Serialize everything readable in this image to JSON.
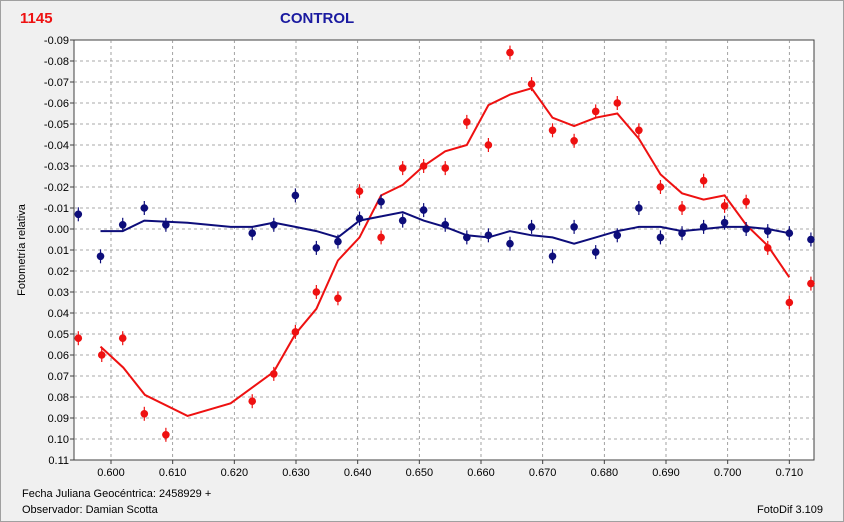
{
  "header": {
    "id": "1145",
    "title": "CONTROL"
  },
  "footer": {
    "jd_label": "Fecha Juliana Geocéntrica: 2458929 +",
    "observer_label": "Observador: Damian Scotta",
    "software": "FotoDif 3.109"
  },
  "colors": {
    "target": "#ee1111",
    "control": "#0d0d7a",
    "grid": "#8c8c8c"
  },
  "chart_data": {
    "type": "scatter",
    "ylabel": "Fotometría relativa",
    "xlim": [
      0.594,
      0.714
    ],
    "ylim": [
      0.11,
      -0.09
    ],
    "y_inverted": true,
    "grid": true,
    "x_ticks": [
      "0.600",
      "0.610",
      "0.620",
      "0.630",
      "0.640",
      "0.650",
      "0.660",
      "0.670",
      "0.680",
      "0.690",
      "0.700",
      "0.710"
    ],
    "y_ticks": [
      "-0.09",
      "-0.08",
      "-0.07",
      "-0.06",
      "-0.05",
      "-0.04",
      "-0.03",
      "-0.02",
      "-0.01",
      "0.00",
      "0.01",
      "0.02",
      "0.03",
      "0.04",
      "0.05",
      "0.06",
      "0.07",
      "0.08",
      "0.09",
      "0.10",
      "0.11"
    ],
    "y_tick_labels": [
      "-0.09",
      "-0.08",
      "-0.07",
      "-0.06",
      "-0.05",
      "-0.04",
      "-0.03",
      "-0.02",
      "-0.01",
      "0.00",
      "0.01",
      "0.02",
      "0.03",
      "0.04",
      "0.05",
      "0.06",
      "0.07",
      "0.08",
      "0.09",
      "0.10",
      "0.11"
    ],
    "series": [
      {
        "color": "#ee1111",
        "points": [
          [
            0.5947,
            0.052
          ],
          [
            0.5985,
            0.06
          ],
          [
            0.6019,
            0.052
          ],
          [
            0.6054,
            0.088
          ],
          [
            0.6089,
            0.098
          ],
          [
            0.6229,
            0.082
          ],
          [
            0.6264,
            0.069
          ],
          [
            0.6299,
            0.049
          ],
          [
            0.6333,
            0.03
          ],
          [
            0.6368,
            0.033
          ],
          [
            0.6403,
            -0.018
          ],
          [
            0.6438,
            0.004
          ],
          [
            0.6473,
            -0.029
          ],
          [
            0.6507,
            -0.03
          ],
          [
            0.6542,
            -0.029
          ],
          [
            0.6577,
            -0.051
          ],
          [
            0.6612,
            -0.04
          ],
          [
            0.6647,
            -0.084
          ],
          [
            0.6682,
            -0.069
          ],
          [
            0.6716,
            -0.047
          ],
          [
            0.6751,
            -0.042
          ],
          [
            0.6786,
            -0.056
          ],
          [
            0.6821,
            -0.06
          ],
          [
            0.6856,
            -0.047
          ],
          [
            0.6891,
            -0.02
          ],
          [
            0.6926,
            -0.01
          ],
          [
            0.6961,
            -0.023
          ],
          [
            0.6995,
            -0.011
          ],
          [
            0.703,
            -0.013
          ],
          [
            0.7065,
            0.009
          ],
          [
            0.71,
            0.035
          ],
          [
            0.7135,
            0.026
          ]
        ],
        "line": [
          [
            0.5983,
            0.056
          ],
          [
            0.602,
            0.066
          ],
          [
            0.6055,
            0.079
          ],
          [
            0.6124,
            0.089
          ],
          [
            0.6194,
            0.083
          ],
          [
            0.6264,
            0.068
          ],
          [
            0.6299,
            0.05
          ],
          [
            0.6333,
            0.038
          ],
          [
            0.6368,
            0.015
          ],
          [
            0.6403,
            0.004
          ],
          [
            0.6438,
            -0.016
          ],
          [
            0.6473,
            -0.021
          ],
          [
            0.6507,
            -0.03
          ],
          [
            0.6542,
            -0.037
          ],
          [
            0.6577,
            -0.04
          ],
          [
            0.6612,
            -0.059
          ],
          [
            0.6647,
            -0.064
          ],
          [
            0.6682,
            -0.067
          ],
          [
            0.6716,
            -0.053
          ],
          [
            0.6751,
            -0.049
          ],
          [
            0.6786,
            -0.053
          ],
          [
            0.6821,
            -0.055
          ],
          [
            0.6856,
            -0.043
          ],
          [
            0.6891,
            -0.026
          ],
          [
            0.6926,
            -0.017
          ],
          [
            0.6961,
            -0.014
          ],
          [
            0.6995,
            -0.016
          ],
          [
            0.703,
            -0.002
          ],
          [
            0.7065,
            0.008
          ],
          [
            0.71,
            0.023
          ]
        ]
      },
      {
        "color": "#0d0d7a",
        "points": [
          [
            0.5947,
            -0.007
          ],
          [
            0.5983,
            0.013
          ],
          [
            0.6019,
            -0.002
          ],
          [
            0.6054,
            -0.01
          ],
          [
            0.6089,
            -0.002
          ],
          [
            0.6229,
            0.002
          ],
          [
            0.6264,
            -0.002
          ],
          [
            0.6299,
            -0.016
          ],
          [
            0.6333,
            0.009
          ],
          [
            0.6368,
            0.006
          ],
          [
            0.6403,
            -0.005
          ],
          [
            0.6438,
            -0.013
          ],
          [
            0.6473,
            -0.004
          ],
          [
            0.6507,
            -0.009
          ],
          [
            0.6542,
            -0.002
          ],
          [
            0.6577,
            0.004
          ],
          [
            0.6612,
            0.003
          ],
          [
            0.6647,
            0.007
          ],
          [
            0.6682,
            -0.001
          ],
          [
            0.6716,
            0.013
          ],
          [
            0.6751,
            -0.001
          ],
          [
            0.6786,
            0.011
          ],
          [
            0.6821,
            0.003
          ],
          [
            0.6856,
            -0.01
          ],
          [
            0.6891,
            0.004
          ],
          [
            0.6926,
            0.002
          ],
          [
            0.6961,
            -0.001
          ],
          [
            0.6995,
            -0.003
          ],
          [
            0.703,
            0.0
          ],
          [
            0.7065,
            0.001
          ],
          [
            0.71,
            0.002
          ],
          [
            0.7135,
            0.005
          ]
        ],
        "line": [
          [
            0.5983,
            0.001
          ],
          [
            0.6019,
            0.001
          ],
          [
            0.6054,
            -0.004
          ],
          [
            0.6124,
            -0.003
          ],
          [
            0.6194,
            -0.001
          ],
          [
            0.6229,
            -0.001
          ],
          [
            0.6264,
            -0.003
          ],
          [
            0.6299,
            -0.001
          ],
          [
            0.6333,
            0.001
          ],
          [
            0.6368,
            0.004
          ],
          [
            0.6403,
            -0.004
          ],
          [
            0.6438,
            -0.006
          ],
          [
            0.6473,
            -0.008
          ],
          [
            0.6507,
            -0.004
          ],
          [
            0.6542,
            -0.001
          ],
          [
            0.6577,
            0.003
          ],
          [
            0.6612,
            0.004
          ],
          [
            0.6647,
            0.001
          ],
          [
            0.6682,
            0.003
          ],
          [
            0.6716,
            0.004
          ],
          [
            0.6751,
            0.007
          ],
          [
            0.6786,
            0.004
          ],
          [
            0.6821,
            0.001
          ],
          [
            0.6856,
            -0.001
          ],
          [
            0.6891,
            -0.001
          ],
          [
            0.6926,
            0.001
          ],
          [
            0.6961,
            0.0
          ],
          [
            0.6995,
            -0.001
          ],
          [
            0.703,
            -0.001
          ],
          [
            0.7065,
            0.0
          ],
          [
            0.71,
            0.002
          ]
        ]
      }
    ]
  }
}
